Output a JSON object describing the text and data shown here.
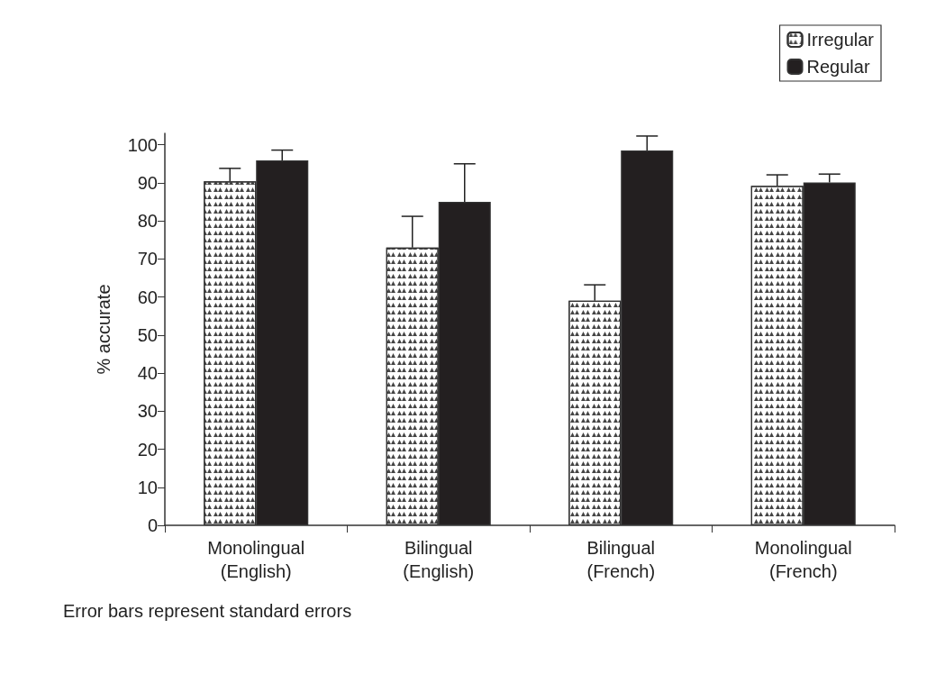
{
  "chart_data": {
    "type": "bar",
    "ylabel": "% accurate",
    "categories": [
      "Monolingual\n(English)",
      "Bilingual\n(English)",
      "Bilingual\n(French)",
      "Monolingual\n(French)"
    ],
    "series": [
      {
        "name": "Irregular",
        "color": "#ffffff",
        "values": [
          90.4,
          73,
          59,
          89.2
        ],
        "errors": [
          3.4,
          8.2,
          4.2,
          2.9
        ]
      },
      {
        "name": "Regular",
        "color": "#231f20",
        "values": [
          95.9,
          85,
          98.5,
          90.1
        ],
        "errors": [
          2.7,
          10,
          3.8,
          2.2
        ]
      }
    ],
    "ylim": [
      0,
      103
    ],
    "yticks": [
      0,
      10,
      20,
      30,
      40,
      50,
      60,
      70,
      80,
      90,
      100
    ],
    "grid": false,
    "legend": "top right",
    "annotations": [
      "Error bars represent standard errors"
    ]
  }
}
